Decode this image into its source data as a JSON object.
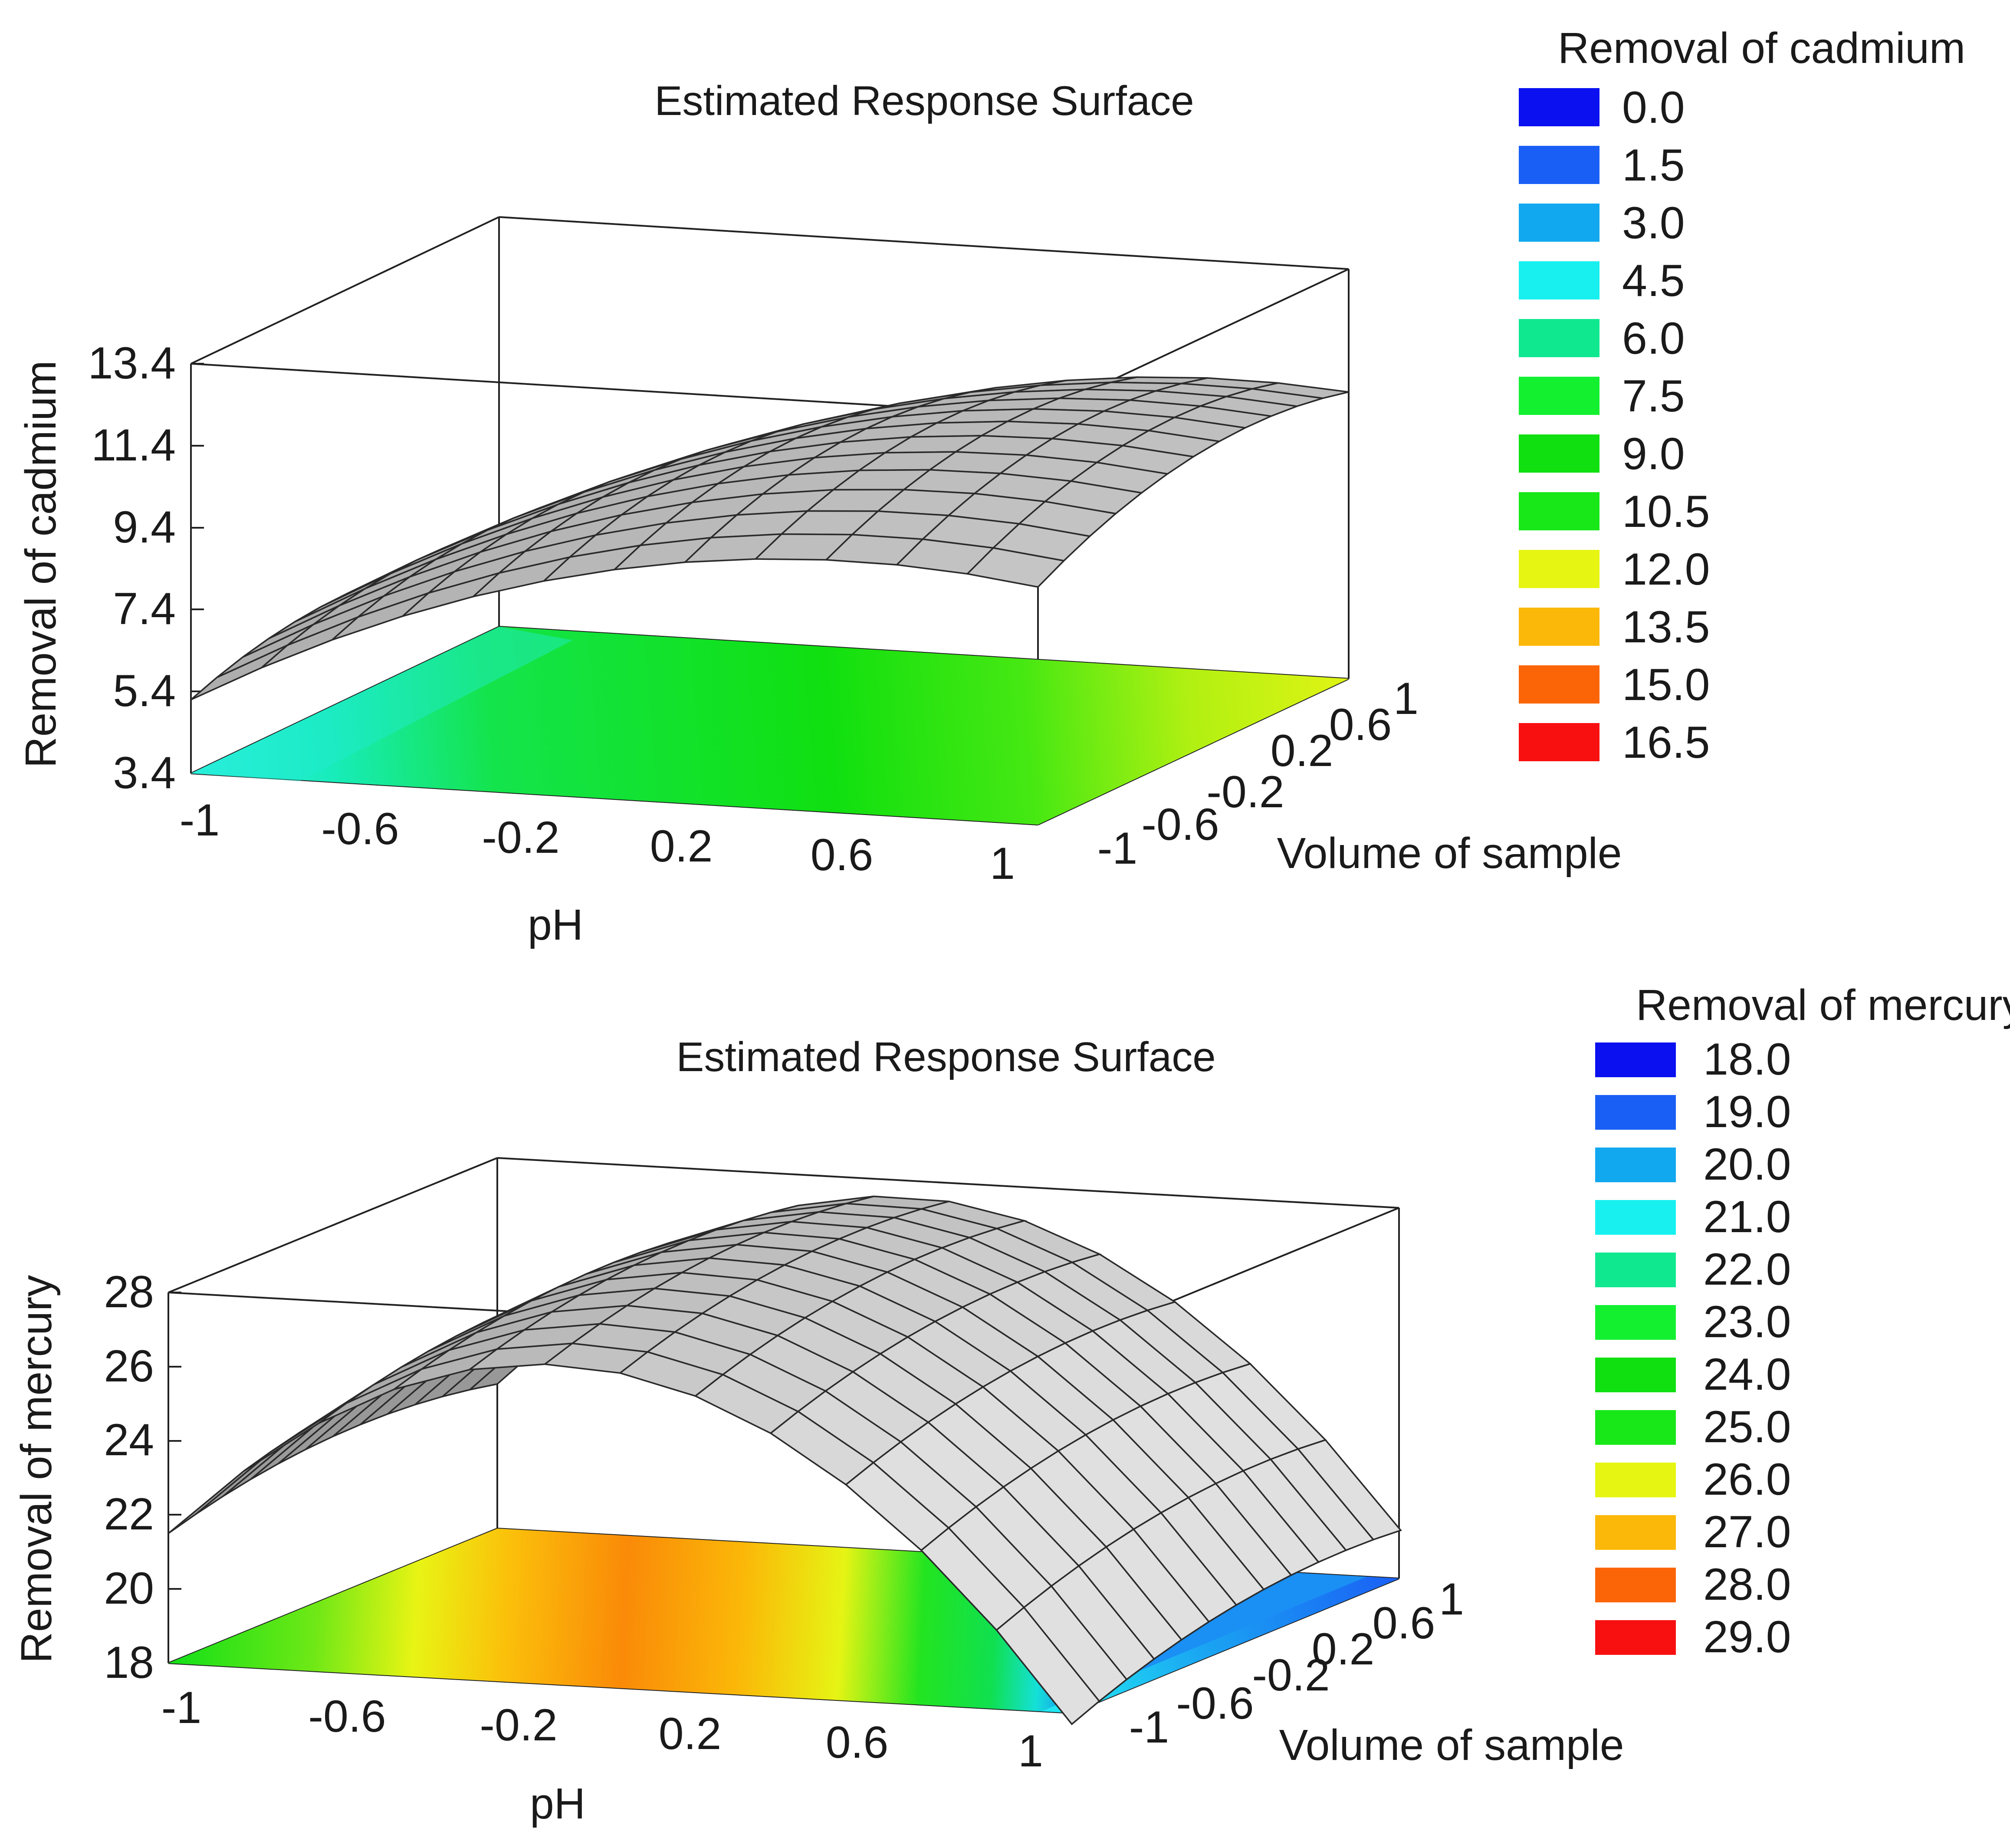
{
  "chart_data": [
    {
      "type": "surface",
      "title": "Estimated Response Surface",
      "xlabel": "pH",
      "ylabel": "Volume of sample",
      "zlabel": "Removal of cadmium",
      "x_ticks": [
        "-1",
        "-0.6",
        "-0.2",
        "0.2",
        "0.6",
        "1"
      ],
      "y_ticks": [
        "-1",
        "-0.6",
        "-0.2",
        "0.2",
        "0.6",
        "1"
      ],
      "z_ticks": [
        "3.4",
        "5.4",
        "7.4",
        "9.4",
        "11.4",
        "13.4"
      ],
      "xlim": [
        -1,
        1
      ],
      "ylim": [
        -1,
        1
      ],
      "zlim": [
        3.4,
        13.4
      ],
      "model": {
        "b0": 10.1,
        "bx": 2.3,
        "by": 0.3,
        "bxx": -1.8,
        "byy": -0.8,
        "bxy": 0.3
      },
      "legend": {
        "title": "Removal of cadmium",
        "levels": [
          "0.0",
          "1.5",
          "3.0",
          "4.5",
          "6.0",
          "7.5",
          "9.0",
          "10.5",
          "12.0",
          "13.5",
          "15.0",
          "16.5"
        ],
        "colors": [
          "#0a10f0",
          "#1a5ff5",
          "#12a8f0",
          "#18f0f0",
          "#10e890",
          "#12f030",
          "#10e010",
          "#18e818",
          "#e6f512",
          "#fbb808",
          "#fb6508",
          "#f81010"
        ]
      }
    },
    {
      "type": "surface",
      "title": "Estimated Response Surface",
      "xlabel": "pH",
      "ylabel": "Volume of sample",
      "zlabel": "Removal of mercury",
      "x_ticks": [
        "-1",
        "-0.6",
        "-0.2",
        "0.2",
        "0.6",
        "1"
      ],
      "y_ticks": [
        "-1",
        "-0.6",
        "-0.2",
        "0.2",
        "0.6",
        "1"
      ],
      "z_ticks": [
        "18",
        "20",
        "22",
        "24",
        "26",
        "28"
      ],
      "xlim": [
        -1,
        1
      ],
      "ylim": [
        -1,
        1
      ],
      "zlim": [
        18,
        28
      ],
      "model": {
        "b0": 27.6,
        "bx": -1.6,
        "by": 0.5,
        "bxx": -6.9,
        "byy": -0.6,
        "bxy": 0.3
      },
      "legend": {
        "title": "Removal of mercury",
        "levels": [
          "18.0",
          "19.0",
          "20.0",
          "21.0",
          "22.0",
          "23.0",
          "24.0",
          "25.0",
          "26.0",
          "27.0",
          "28.0",
          "29.0"
        ],
        "colors": [
          "#0a10f0",
          "#1a5ff5",
          "#12a8f0",
          "#18f0f0",
          "#10e890",
          "#12f030",
          "#10e010",
          "#18e818",
          "#e6f512",
          "#fbb808",
          "#fb6508",
          "#f81010"
        ]
      }
    }
  ]
}
